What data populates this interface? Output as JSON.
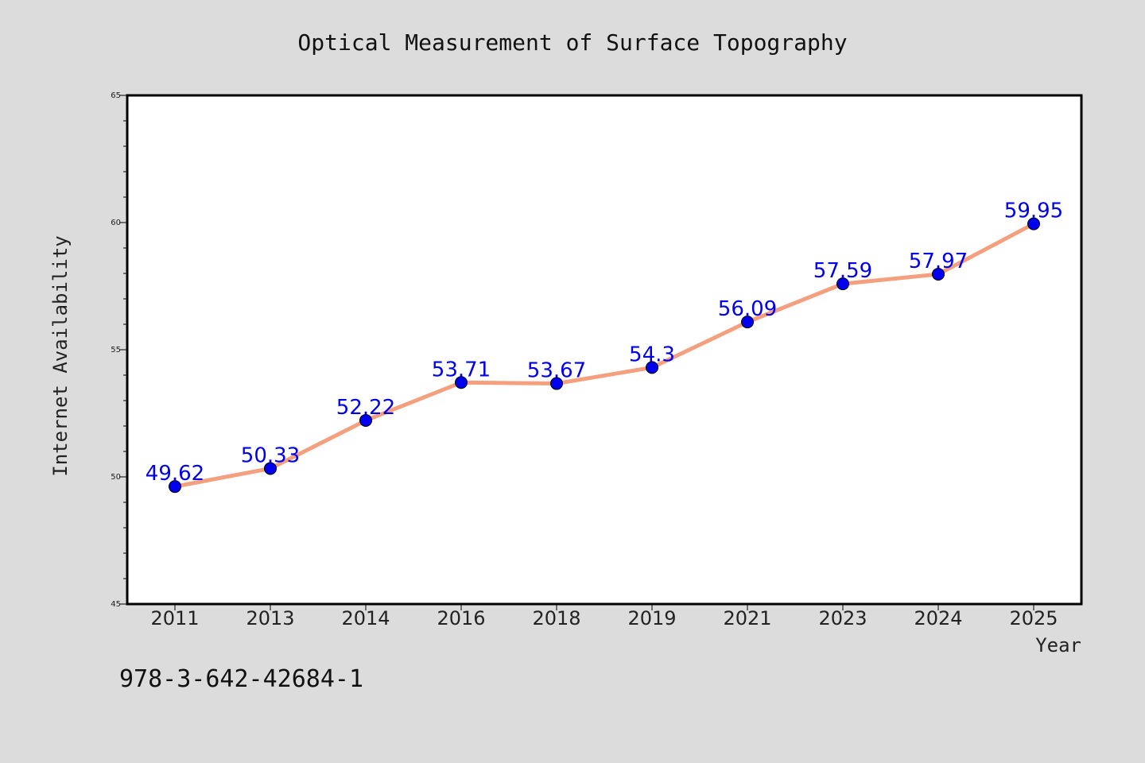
{
  "chart_data": {
    "type": "line",
    "title": "Optical Measurement of Surface Topography",
    "xlabel": "Year",
    "ylabel": "Internet Availability",
    "categories": [
      "2011",
      "2013",
      "2014",
      "2016",
      "2018",
      "2019",
      "2021",
      "2023",
      "2024",
      "2025"
    ],
    "series": [
      {
        "values": [
          49.62,
          50.33,
          52.22,
          53.71,
          53.67,
          54.3,
          56.09,
          57.59,
          57.97,
          59.95
        ],
        "value_labels": [
          "49.62",
          "50.33",
          "52.22",
          "53.71",
          "53.67",
          "54.3",
          "56.09",
          "57.59",
          "57.97",
          "59.95"
        ]
      }
    ],
    "ylim": [
      45,
      65
    ],
    "yticks": [
      "45",
      "50",
      "55",
      "60",
      "65"
    ],
    "grid": false,
    "legend": "none",
    "colors": {
      "line": "#f4a07e",
      "marker": "#0000ee",
      "label": "#0000ee",
      "background": "#dcdcdc",
      "plot_background": "#ffffff"
    }
  },
  "footer": {
    "code": "978-3-642-42684-1"
  }
}
